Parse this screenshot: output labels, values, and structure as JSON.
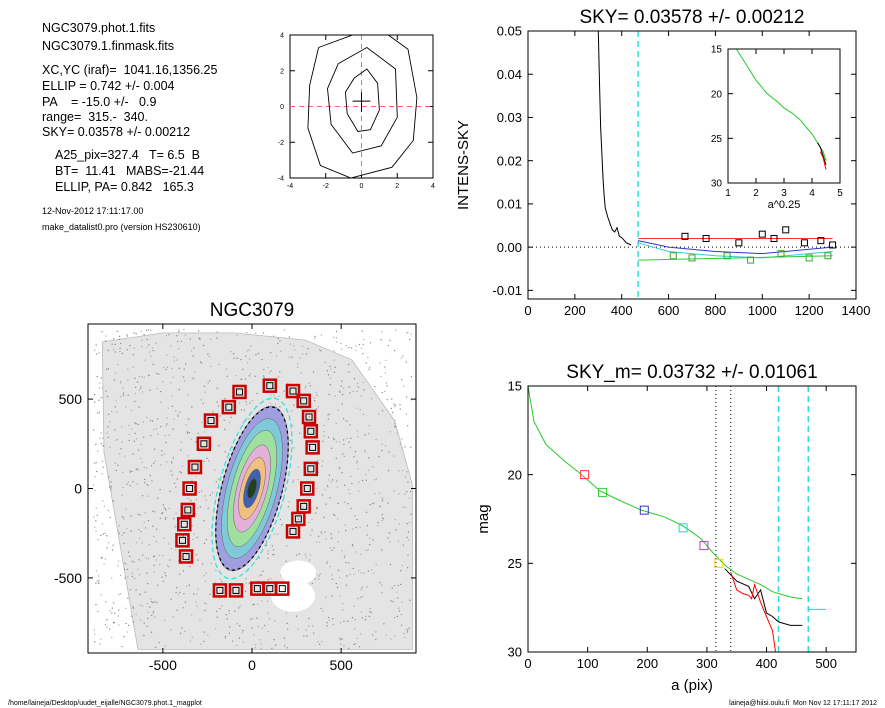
{
  "info": {
    "lines": [
      "NGC3079.phot.1.fits",
      "NGC3079.1.finmask.fits",
      "XC,YC (iraf)=  1041.16,1356.25",
      "ELLIP = 0.742 +/- 0.004",
      "PA    = -15.0 +/-   0.9",
      "range=  315.-  340.",
      "SKY= 0.03578 +/- 0.00212",
      "A25_pix=327.4   T= 6.5  B",
      "BT=  11.41   MABS=-21.44",
      "ELLIP, PA= 0.842   165.3"
    ],
    "timestamp": "12-Nov-2012 17:11:17.00",
    "program": "make_datalist0.pro (version HS230610)"
  },
  "footer": {
    "left": "/home/laineja/Desktop/uudet_eijalle/NGC3079.phot.1_magplot",
    "right": "laineja@hiisi.oulu.fi  Mon Nov 12 17:11:17 2012"
  },
  "chart_data": [
    {
      "id": "center_contour",
      "type": "line",
      "title": "",
      "xlabel": "",
      "ylabel": "",
      "xlim": [
        -4,
        4
      ],
      "ylim": [
        -4,
        4
      ],
      "xticks": [
        -4,
        -2,
        0,
        2,
        4
      ],
      "yticks": [
        -4,
        -2,
        0,
        2,
        4
      ],
      "colors": {
        "contour": "#000000",
        "cross": "#ff6666"
      }
    },
    {
      "id": "sky_profile",
      "type": "line",
      "title": "SKY= 0.03578 +/- 0.00212",
      "xlabel": "",
      "ylabel": "INTENS-SKY",
      "xlim": [
        0,
        1400
      ],
      "ylim": [
        -0.012,
        0.05
      ],
      "xticks": [
        0,
        200,
        400,
        600,
        800,
        1000,
        1200,
        1400
      ],
      "yticks": [
        -0.01,
        0.0,
        0.01,
        0.02,
        0.03,
        0.04,
        0.05
      ],
      "ytick_labels": [
        "-0.01",
        "0.00",
        "0.01",
        "0.02",
        "0.03",
        "0.04",
        "0.05"
      ],
      "vline_x": 470,
      "series": [
        {
          "color": "#000000",
          "x": [
            300,
            305,
            310,
            315,
            320,
            325,
            330,
            340,
            350,
            360,
            370,
            380,
            390,
            400,
            420,
            440
          ],
          "y": [
            0.05,
            0.038,
            0.028,
            0.022,
            0.016,
            0.012,
            0.009,
            0.007,
            0.0055,
            0.004,
            0.0035,
            0.0045,
            0.0025,
            0.0022,
            0.001,
            0.0005
          ]
        },
        {
          "color": "#ff3333",
          "x": [
            470,
            1300
          ],
          "y": [
            0.002,
            0.002
          ]
        },
        {
          "color": "#3333cc",
          "x": [
            470,
            600,
            800,
            1000,
            1200,
            1300
          ],
          "y": [
            0.0015,
            0.0,
            -0.001,
            -0.0015,
            -0.0005,
            0.0
          ]
        },
        {
          "color": "#33cccc",
          "x": [
            470,
            600,
            800,
            1000,
            1300
          ],
          "y": [
            0.001,
            -0.001,
            -0.002,
            -0.0025,
            -0.001
          ]
        },
        {
          "color": "#33cc33",
          "x": [
            470,
            1300
          ],
          "y": [
            -0.003,
            -0.002
          ]
        }
      ],
      "squares": [
        {
          "color": "#000000",
          "x": [
            670,
            760,
            900,
            1000,
            1050,
            1100,
            1180,
            1250,
            1300
          ],
          "y": [
            0.0025,
            0.002,
            0.001,
            0.003,
            0.002,
            0.004,
            0.001,
            0.0015,
            0.0005
          ]
        },
        {
          "color": "#33aa33",
          "x": [
            620,
            700,
            850,
            950,
            1080,
            1200,
            1280
          ],
          "y": [
            -0.002,
            -0.0025,
            -0.002,
            -0.003,
            -0.0015,
            -0.0025,
            -0.002
          ]
        }
      ]
    },
    {
      "id": "sky_inset",
      "type": "line",
      "title": "",
      "xlabel": "a^0.25",
      "ylabel": "",
      "xlim": [
        1,
        5
      ],
      "ylim": [
        15,
        30
      ],
      "reversed_y": true,
      "xticks": [
        1,
        2,
        3,
        4,
        5
      ],
      "yticks": [
        15,
        20,
        25,
        30
      ],
      "series": [
        {
          "color": "#22cc22",
          "x": [
            1.3,
            1.6,
            2.0,
            2.4,
            2.8,
            3.0,
            3.3,
            3.6,
            3.8,
            4.0,
            4.2,
            4.4,
            4.5
          ],
          "y": [
            15.0,
            16.5,
            18.5,
            20.0,
            21.0,
            21.6,
            22.2,
            23.0,
            23.8,
            24.5,
            25.5,
            26.5,
            27.5
          ]
        },
        {
          "color": "#000000",
          "x": [
            4.2,
            4.3,
            4.4,
            4.5
          ],
          "y": [
            25.5,
            26.0,
            27.0,
            28.0
          ]
        },
        {
          "color": "#ff0000",
          "x": [
            4.3,
            4.4,
            4.5
          ],
          "y": [
            26.5,
            27.2,
            28.5
          ]
        }
      ]
    },
    {
      "id": "galaxy_image",
      "type": "scatter",
      "title": "NGC3079",
      "xlabel": "",
      "ylabel": "",
      "xlim": [
        -920,
        920
      ],
      "ylim": [
        -920,
        920
      ],
      "xticks": [
        -500,
        0,
        500
      ],
      "yticks": [
        -500,
        0,
        500
      ],
      "marker_color": "#cc0000",
      "markers": {
        "x": [
          -70,
          100,
          230,
          -130,
          -230,
          -270,
          -320,
          -350,
          -360,
          -380,
          -390,
          -370,
          -180,
          -90,
          30,
          100,
          290,
          320,
          330,
          340,
          330,
          310,
          290,
          260,
          230,
          170
        ],
        "y": [
          540,
          575,
          545,
          455,
          380,
          250,
          120,
          0,
          -120,
          -200,
          -290,
          -380,
          -570,
          -570,
          -560,
          -560,
          490,
          400,
          320,
          230,
          110,
          0,
          -100,
          -170,
          -240,
          -560
        ]
      }
    },
    {
      "id": "mag_profile",
      "type": "line",
      "title": "SKY_m=  0.03732 +/- 0.01061",
      "xlabel": "a (pix)",
      "ylabel": "mag",
      "xlim": [
        0,
        550
      ],
      "ylim": [
        15,
        30
      ],
      "reversed_y": true,
      "xticks": [
        0,
        100,
        200,
        300,
        400,
        500
      ],
      "yticks": [
        15,
        20,
        25,
        30
      ],
      "vlines": [
        315,
        340
      ],
      "cyan_vlines": [
        420,
        470
      ],
      "series": [
        {
          "color": "#22cc22",
          "x": [
            0,
            10,
            30,
            60,
            90,
            120,
            150,
            190,
            230,
            260,
            290,
            310,
            330,
            350,
            370,
            390,
            410,
            440,
            460
          ],
          "y": [
            15.0,
            17.0,
            18.3,
            19.2,
            20.0,
            20.9,
            21.4,
            22.0,
            22.4,
            22.9,
            23.6,
            24.4,
            25.1,
            25.6,
            25.9,
            26.2,
            26.6,
            26.9,
            27.0
          ]
        },
        {
          "color": "#000000",
          "x": [
            330,
            350,
            370,
            380,
            390,
            400,
            410,
            420,
            440,
            460
          ],
          "y": [
            25.3,
            26.0,
            26.3,
            27.0,
            26.5,
            27.8,
            28.0,
            28.3,
            28.5,
            28.5
          ]
        },
        {
          "color": "#ff0000",
          "x": [
            340,
            350,
            360,
            370,
            375,
            380,
            390,
            400,
            410,
            415
          ],
          "y": [
            25.5,
            26.5,
            26.7,
            26.8,
            27.0,
            26.2,
            27.2,
            28.0,
            28.8,
            30.0
          ]
        },
        {
          "color": "#33cccc",
          "x": [
            470,
            500
          ],
          "y": [
            27.6,
            27.6
          ]
        }
      ],
      "squares": [
        {
          "color": "#ff3333",
          "x": [
            95
          ],
          "y": [
            20.0
          ]
        },
        {
          "color": "#33cc33",
          "x": [
            125
          ],
          "y": [
            21.0
          ]
        },
        {
          "color": "#3333cc",
          "x": [
            195
          ],
          "y": [
            22.0
          ]
        },
        {
          "color": "#33cccc",
          "x": [
            260
          ],
          "y": [
            23.0
          ]
        },
        {
          "color": "#cc33cc",
          "x": [
            295
          ],
          "y": [
            24.0
          ]
        },
        {
          "color": "#ffcc00",
          "x": [
            320
          ],
          "y": [
            25.0
          ]
        }
      ]
    }
  ]
}
